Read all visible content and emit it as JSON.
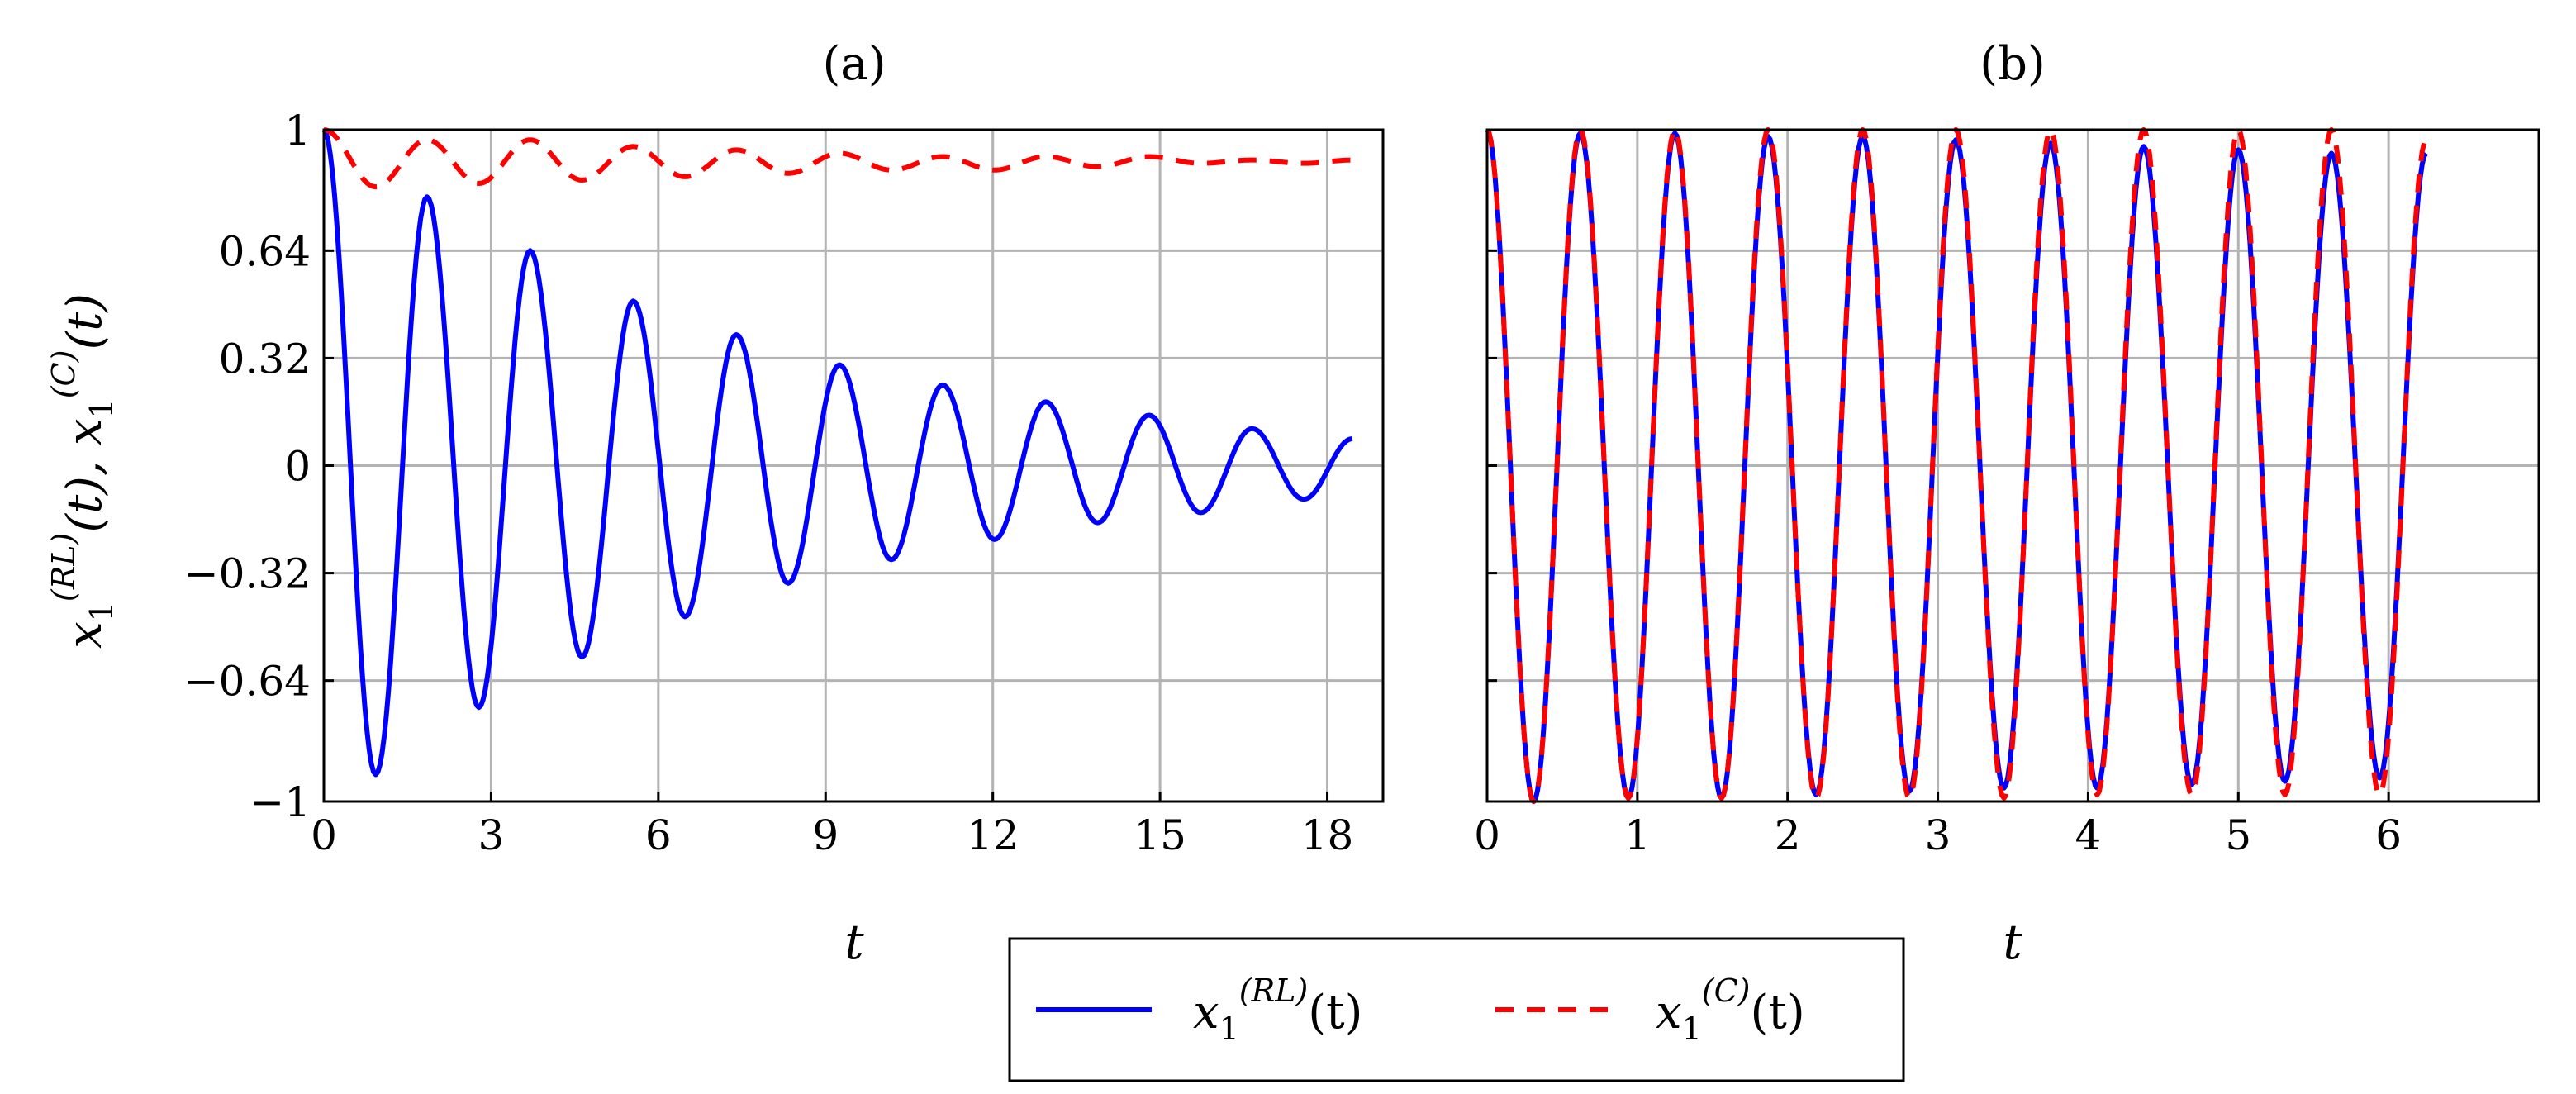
{
  "chart_data": [
    {
      "type": "line",
      "title": "(a)",
      "xlabel": "t",
      "ylabel": "x1(RL)(t), x1(C)(t)",
      "ylabel_parts": {
        "var": "x",
        "sub": "1",
        "sup1": "(RL)",
        "mid": "(t), ",
        "sup2": "(C)",
        "end": "(t)"
      },
      "xlim": [
        0,
        19
      ],
      "ylim": [
        -1,
        1
      ],
      "xticks": [
        0,
        3,
        6,
        9,
        12,
        15,
        18
      ],
      "xtick_labels": [
        "0",
        "3",
        "6",
        "9",
        "12",
        "15",
        "18"
      ],
      "yticks": [
        -1,
        -0.64,
        -0.32,
        0,
        0.32,
        0.64,
        1
      ],
      "ytick_labels": [
        "−1",
        "−0.64",
        "−0.32",
        "0",
        "0.32",
        "0.64",
        "1"
      ],
      "grid": true,
      "series": [
        {
          "name": "x1(RL)(t)",
          "color": "#0000ff",
          "style": "solid",
          "x": [
            0,
            0.93,
            1.85,
            2.78,
            3.7,
            4.63,
            5.55,
            6.48,
            7.4,
            8.33,
            9.25,
            10.18,
            11.1,
            12.03,
            12.95,
            13.88,
            14.8,
            15.73,
            16.65,
            17.58,
            18.45
          ],
          "y": [
            1.0,
            -0.92,
            0.8,
            -0.72,
            0.64,
            -0.57,
            0.49,
            -0.45,
            0.39,
            -0.35,
            0.3,
            -0.28,
            0.24,
            -0.22,
            0.19,
            -0.17,
            0.15,
            -0.14,
            0.11,
            -0.1,
            0.08
          ]
        },
        {
          "name": "x1(C)(t)",
          "color": "#ff0000",
          "style": "dashed",
          "x": [
            0,
            0.93,
            1.85,
            2.78,
            3.7,
            4.63,
            5.55,
            6.48,
            7.4,
            8.33,
            9.25,
            10.18,
            11.1,
            12.03,
            12.95,
            13.88,
            14.8,
            15.73,
            16.65,
            17.58,
            18.45
          ],
          "y": [
            1.0,
            0.83,
            0.97,
            0.84,
            0.97,
            0.85,
            0.95,
            0.86,
            0.94,
            0.87,
            0.93,
            0.88,
            0.92,
            0.88,
            0.92,
            0.89,
            0.92,
            0.9,
            0.91,
            0.9,
            0.91
          ]
        }
      ]
    },
    {
      "type": "line",
      "title": "(b)",
      "xlabel": "t",
      "xlim": [
        0,
        7
      ],
      "ylim": [
        -1,
        1
      ],
      "xticks": [
        0,
        1,
        2,
        3,
        4,
        5,
        6
      ],
      "xtick_labels": [
        "0",
        "1",
        "2",
        "3",
        "4",
        "5",
        "6"
      ],
      "yticks": [
        -1,
        -0.64,
        -0.32,
        0,
        0.32,
        0.64,
        1
      ],
      "grid": true,
      "series": [
        {
          "name": "x1(RL)(t)",
          "color": "#0000ff",
          "style": "solid",
          "x": [
            0,
            0.31,
            0.62,
            0.94,
            1.25,
            1.56,
            1.87,
            2.19,
            2.5,
            2.81,
            3.12,
            3.44,
            3.75,
            4.06,
            4.37,
            4.69,
            5.0,
            5.31,
            5.62,
            5.94,
            6.25
          ],
          "y": [
            1.0,
            -1.0,
            0.99,
            -0.99,
            0.99,
            -0.99,
            0.98,
            -0.98,
            0.98,
            -0.97,
            0.97,
            -0.96,
            0.96,
            -0.96,
            0.95,
            -0.95,
            0.94,
            -0.94,
            0.93,
            -0.93,
            0.93
          ]
        },
        {
          "name": "x1(C)(t)",
          "color": "#ff0000",
          "style": "dashed",
          "x": [
            0,
            0.31,
            0.62,
            0.94,
            1.25,
            1.56,
            1.87,
            2.19,
            2.5,
            2.81,
            3.12,
            3.44,
            3.75,
            4.06,
            4.37,
            4.69,
            5.0,
            5.31,
            5.62,
            5.94,
            6.25
          ],
          "y": [
            1.0,
            -1.0,
            1.0,
            -0.99,
            1.0,
            -0.99,
            1.0,
            -0.99,
            1.0,
            -0.99,
            1.0,
            -0.99,
            1.0,
            -0.98,
            1.0,
            -0.98,
            1.0,
            -0.98,
            1.0,
            -0.98,
            0.97
          ]
        }
      ]
    }
  ],
  "legend": {
    "placement": "bottom-center",
    "items": [
      {
        "label": "x1(RL)(t)",
        "var": "x",
        "sub": "1",
        "sup": "(RL)",
        "tail": "(t)",
        "color": "#0000ff",
        "style": "solid"
      },
      {
        "label": "x1(C)(t)",
        "var": "x",
        "sub": "1",
        "sup": "(C)",
        "tail": "(t)",
        "color": "#ff0000",
        "style": "dashed"
      }
    ]
  }
}
